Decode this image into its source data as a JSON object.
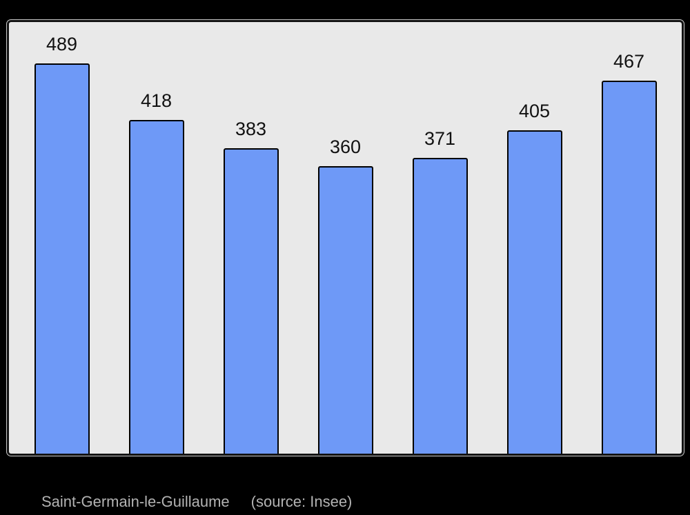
{
  "chart_data": {
    "type": "bar",
    "values": [
      489,
      418,
      383,
      360,
      371,
      405,
      467
    ],
    "value_labels": [
      "489",
      "418",
      "383",
      "360",
      "371",
      "405",
      "467"
    ],
    "title": "Saint-Germain-le-Guillaume",
    "source_note": "(source: Insee)",
    "xlabel": "",
    "ylabel": "",
    "ylim": [
      0,
      540
    ],
    "grid": false,
    "legend": false,
    "x_tick_labels_visible": false,
    "y_axis_visible": false,
    "value_labels_position": "above-bars"
  },
  "caption": {
    "title": "Saint-Germain-le-Guillaume",
    "source": "(source: Insee)"
  },
  "colors": {
    "page_background": "#000000",
    "plot_background": "#e9e9e9",
    "frame_border": "#131313",
    "frame_outline": "#c9c9c9",
    "bar_fill": "#6e99f7",
    "bar_border": "#000000",
    "label_text": "#111111",
    "caption_text": "#b3b3b3"
  }
}
